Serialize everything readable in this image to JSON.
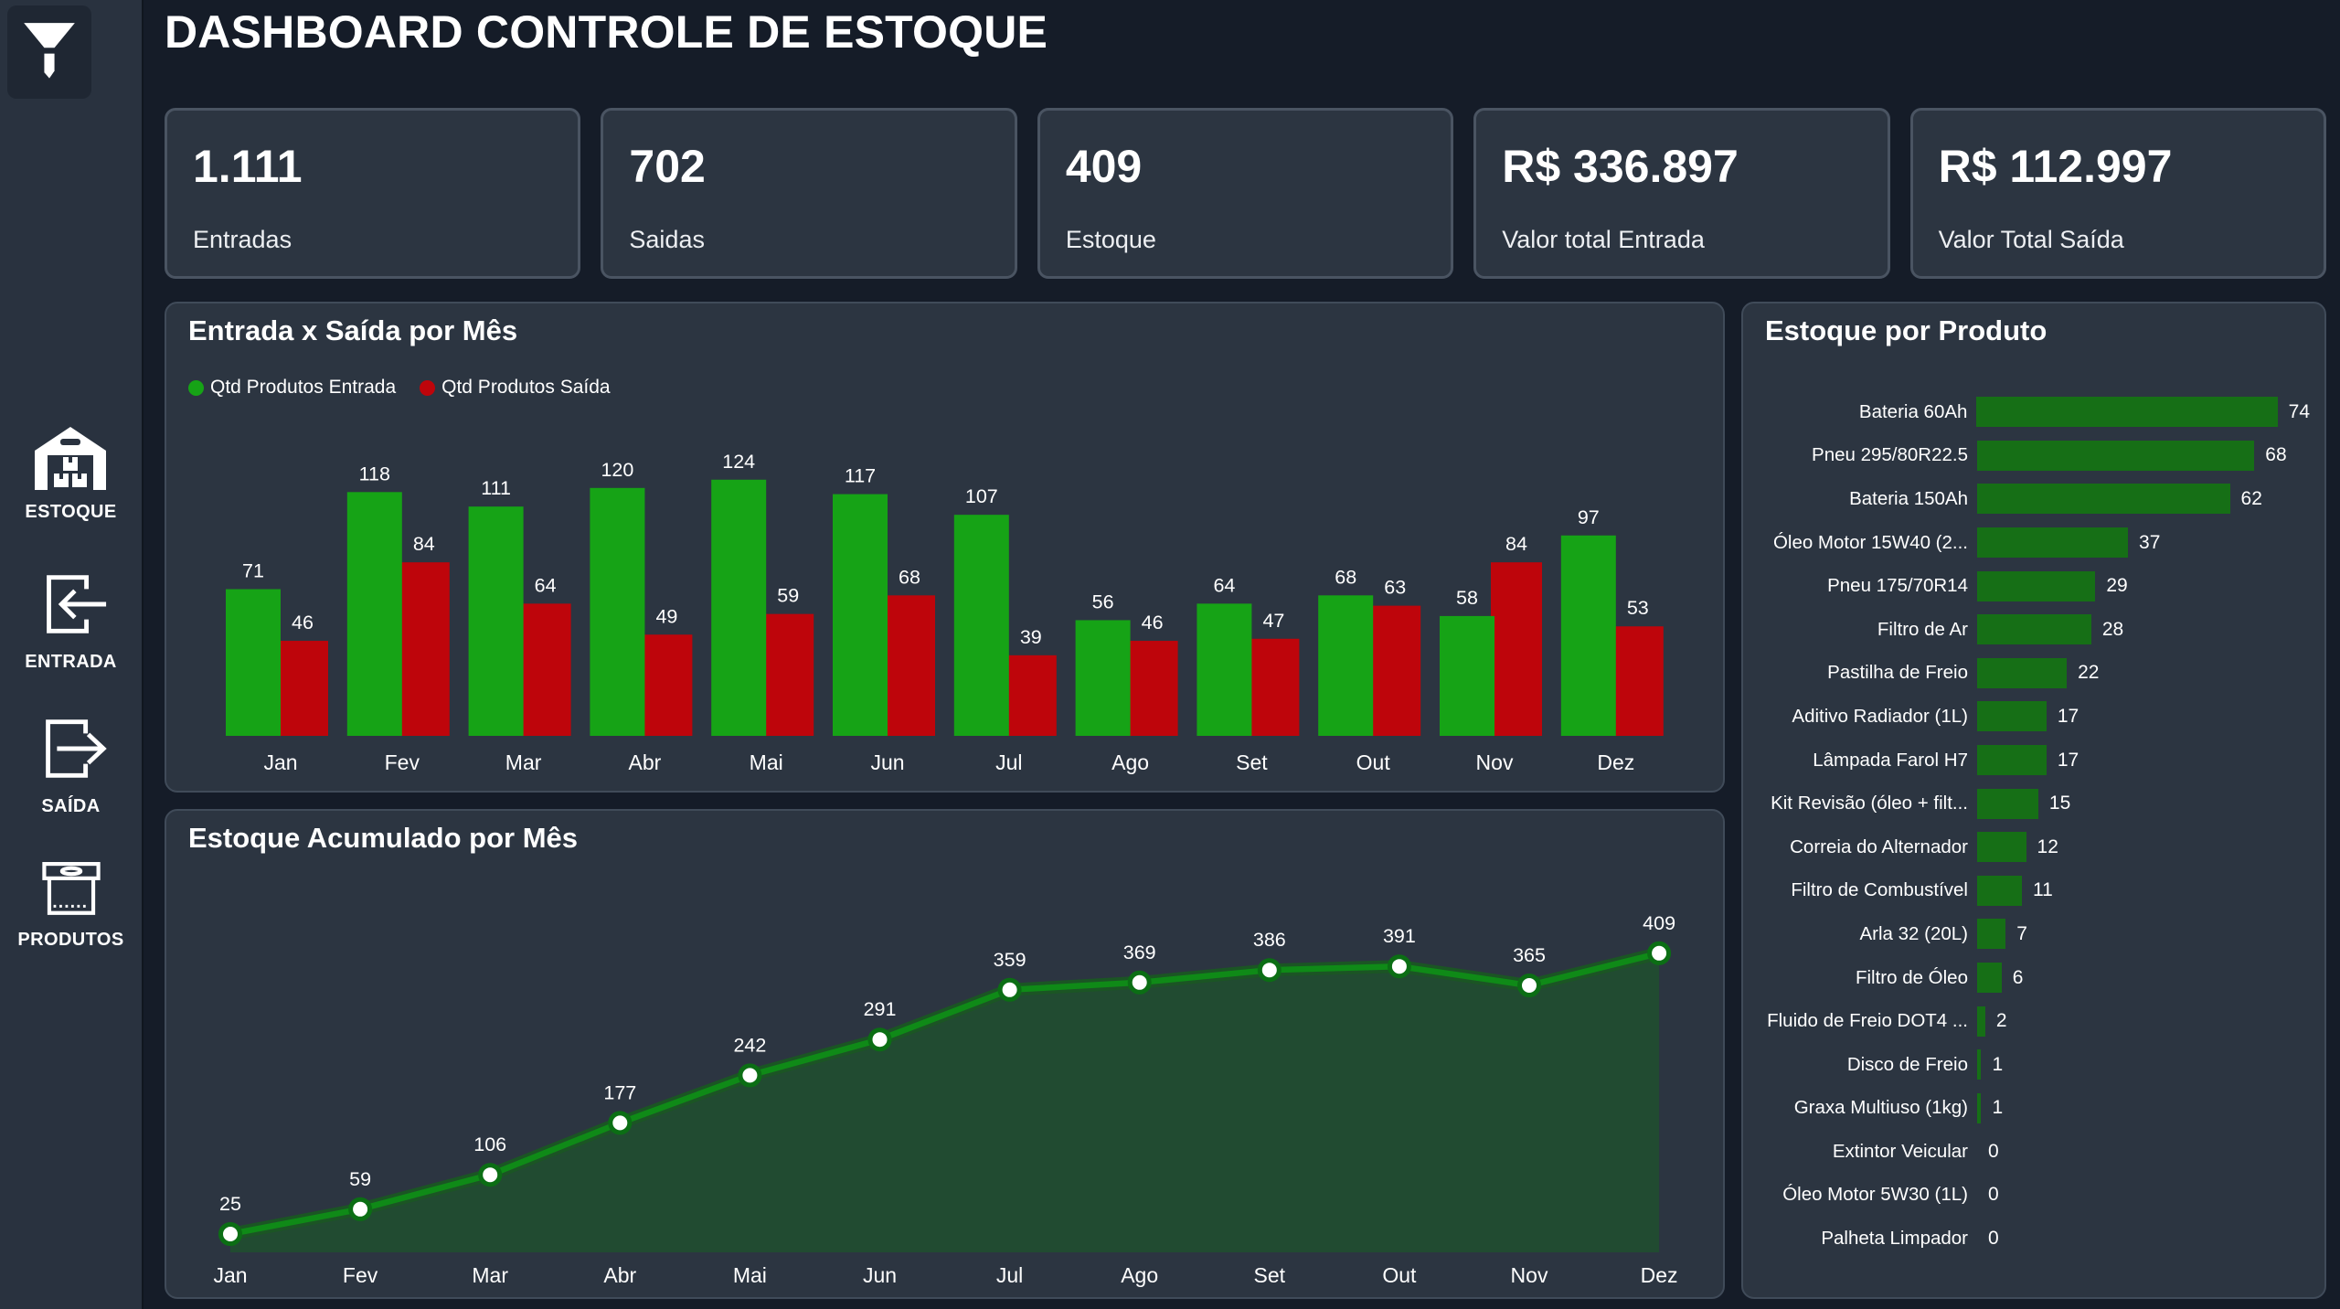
{
  "header": {
    "title": "DASHBOARD CONTROLE DE ESTOQUE"
  },
  "sidebar": {
    "filter_icon": "funnel-icon",
    "items": [
      {
        "id": "estoque",
        "label": "ESTOQUE",
        "icon": "warehouse-icon"
      },
      {
        "id": "entrada",
        "label": "ENTRADA",
        "icon": "arrow-in-icon"
      },
      {
        "id": "saida",
        "label": "SAÍDA",
        "icon": "arrow-out-icon"
      },
      {
        "id": "produtos",
        "label": "PRODUTOS",
        "icon": "box-icon"
      }
    ]
  },
  "kpis": [
    {
      "value": "1.111",
      "label": "Entradas"
    },
    {
      "value": "702",
      "label": "Saidas"
    },
    {
      "value": "409",
      "label": "Estoque"
    },
    {
      "value": "R$ 336.897",
      "label": "Valor total Entrada"
    },
    {
      "value": "R$ 112.997",
      "label": "Valor Total Saída"
    }
  ],
  "colors": {
    "background": "#151C28",
    "sidebar": "#29323F",
    "panel": "#2C3541",
    "card_border": "#4A5462",
    "entrada_green": "#16A316",
    "saida_red": "#BE050B",
    "product_green": "#166F16",
    "area_fill": "#214B31",
    "line_green": "#0F8A17",
    "marker_ring": "#0B6E14"
  },
  "chart_data": [
    {
      "id": "entrada_saida",
      "type": "bar",
      "title": "Entrada x Saída por Mês",
      "categories": [
        "Jan",
        "Fev",
        "Mar",
        "Abr",
        "Mai",
        "Jun",
        "Jul",
        "Ago",
        "Set",
        "Out",
        "Nov",
        "Dez"
      ],
      "series": [
        {
          "name": "Qtd Produtos Entrada",
          "color": "#16A316",
          "values": [
            71,
            118,
            111,
            120,
            124,
            117,
            107,
            56,
            64,
            68,
            58,
            97
          ]
        },
        {
          "name": "Qtd Produtos Saída",
          "color": "#BE050B",
          "values": [
            46,
            84,
            64,
            49,
            59,
            68,
            39,
            46,
            47,
            63,
            84,
            53
          ]
        }
      ],
      "ylim": [
        0,
        130
      ],
      "grid": false,
      "legend_position": "top-left",
      "data_labels": true
    },
    {
      "id": "estoque_acumulado",
      "type": "area",
      "title": "Estoque Acumulado por Mês",
      "categories": [
        "Jan",
        "Fev",
        "Mar",
        "Abr",
        "Mai",
        "Jun",
        "Jul",
        "Ago",
        "Set",
        "Out",
        "Nov",
        "Dez"
      ],
      "values": [
        25,
        59,
        106,
        177,
        242,
        291,
        359,
        369,
        386,
        391,
        365,
        409
      ],
      "ylim": [
        0,
        450
      ],
      "grid": false,
      "data_labels": true,
      "marker": "white-circle"
    },
    {
      "id": "estoque_por_produto",
      "type": "bar",
      "orientation": "horizontal",
      "title": "Estoque por Produto",
      "categories": [
        "Bateria 60Ah",
        "Pneu 295/80R22.5",
        "Bateria 150Ah",
        "Óleo Motor 15W40 (2...",
        "Pneu 175/70R14",
        "Filtro de Ar",
        "Pastilha de Freio",
        "Aditivo Radiador (1L)",
        "Lâmpada Farol H7",
        "Kit Revisão (óleo + filt...",
        "Correia do Alternador",
        "Filtro de Combustível",
        "Arla 32 (20L)",
        "Filtro de Óleo",
        "Fluido de Freio DOT4 ...",
        "Disco de Freio",
        "Graxa Multiuso (1kg)",
        "Extintor Veicular",
        "Óleo Motor 5W30 (1L)",
        "Palheta Limpador"
      ],
      "values": [
        74,
        68,
        62,
        37,
        29,
        28,
        22,
        17,
        17,
        15,
        12,
        11,
        7,
        6,
        2,
        1,
        1,
        0,
        0,
        0
      ],
      "xlim": [
        0,
        74
      ],
      "data_labels": true
    }
  ]
}
